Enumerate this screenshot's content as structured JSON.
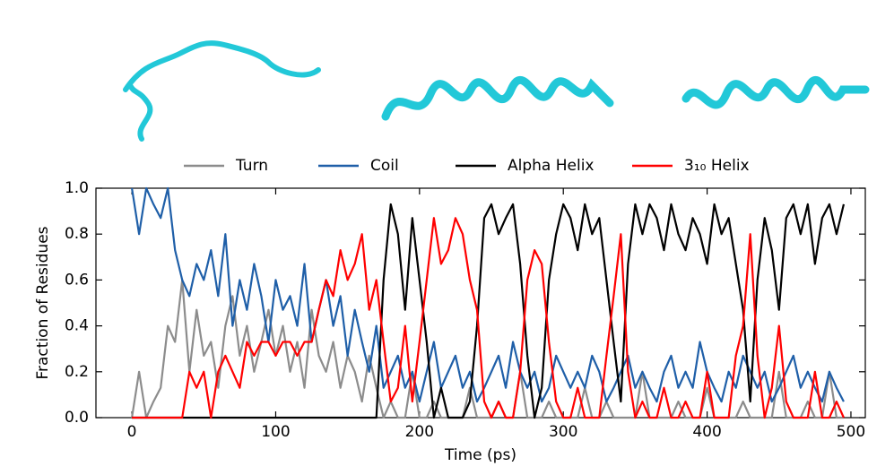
{
  "chart_data": {
    "type": "line",
    "xlabel": "Time (ps)",
    "ylabel": "Fraction of Residues",
    "xlim": [
      -25,
      510
    ],
    "ylim": [
      0,
      1
    ],
    "xticks": [
      0,
      100,
      200,
      300,
      400,
      500
    ],
    "yticks": [
      {
        "value": 0,
        "label": "0.0"
      },
      0.2,
      0.4,
      0.6,
      0.8,
      {
        "value": 1,
        "label": "1.0"
      }
    ],
    "legend": "top",
    "x": [
      0,
      5,
      10,
      15,
      20,
      25,
      30,
      35,
      40,
      45,
      50,
      55,
      60,
      65,
      70,
      75,
      80,
      85,
      90,
      95,
      100,
      105,
      110,
      115,
      120,
      125,
      130,
      135,
      140,
      145,
      150,
      155,
      160,
      165,
      170,
      175,
      180,
      185,
      190,
      195,
      200,
      205,
      210,
      215,
      220,
      225,
      230,
      235,
      240,
      245,
      250,
      255,
      260,
      265,
      270,
      275,
      280,
      285,
      290,
      295,
      300,
      305,
      310,
      315,
      320,
      325,
      330,
      335,
      340,
      345,
      350,
      355,
      360,
      365,
      370,
      375,
      380,
      385,
      390,
      395,
      400,
      405,
      410,
      415,
      420,
      425,
      430,
      435,
      440,
      445,
      450,
      455,
      460,
      465,
      470,
      475,
      480,
      485,
      490,
      495
    ],
    "series": [
      {
        "name": "Turn",
        "color": "#8c8c8c",
        "values": [
          0,
          0.2,
          0,
          0.07,
          0.13,
          0.4,
          0.33,
          0.6,
          0.2,
          0.47,
          0.27,
          0.33,
          0.13,
          0.4,
          0.53,
          0.27,
          0.4,
          0.2,
          0.33,
          0.47,
          0.27,
          0.4,
          0.2,
          0.33,
          0.13,
          0.47,
          0.27,
          0.2,
          0.33,
          0.13,
          0.27,
          0.2,
          0.07,
          0.27,
          0.13,
          0,
          0.07,
          0,
          0,
          0.2,
          0,
          0,
          0.07,
          0,
          0,
          0,
          0,
          0.13,
          0,
          0,
          0,
          0.07,
          0,
          0,
          0.2,
          0,
          0,
          0,
          0.07,
          0,
          0,
          0,
          0,
          0.13,
          0,
          0,
          0.07,
          0,
          0,
          0,
          0,
          0.2,
          0,
          0,
          0,
          0,
          0.07,
          0,
          0,
          0,
          0.13,
          0,
          0,
          0,
          0,
          0.07,
          0,
          0,
          0,
          0,
          0.2,
          0,
          0,
          0,
          0.07,
          0,
          0,
          0.2,
          0,
          0
        ]
      },
      {
        "name": "Coil",
        "color": "#1f5fa8",
        "values": [
          1,
          0.8,
          1,
          0.93,
          0.87,
          1,
          0.73,
          0.6,
          0.53,
          0.67,
          0.6,
          0.73,
          0.53,
          0.8,
          0.4,
          0.6,
          0.47,
          0.67,
          0.53,
          0.33,
          0.6,
          0.47,
          0.53,
          0.4,
          0.67,
          0.33,
          0.47,
          0.6,
          0.4,
          0.53,
          0.27,
          0.47,
          0.33,
          0.2,
          0.4,
          0.13,
          0.2,
          0.27,
          0.13,
          0.2,
          0.07,
          0.2,
          0.33,
          0.13,
          0.2,
          0.27,
          0.13,
          0.2,
          0.07,
          0.13,
          0.2,
          0.27,
          0.13,
          0.33,
          0.2,
          0.13,
          0.2,
          0.07,
          0.13,
          0.27,
          0.2,
          0.13,
          0.2,
          0.13,
          0.27,
          0.2,
          0.07,
          0.13,
          0.2,
          0.27,
          0.13,
          0.2,
          0.13,
          0.07,
          0.2,
          0.27,
          0.13,
          0.2,
          0.13,
          0.33,
          0.2,
          0.13,
          0.07,
          0.2,
          0.13,
          0.27,
          0.2,
          0.13,
          0.2,
          0.07,
          0.13,
          0.2,
          0.27,
          0.13,
          0.2,
          0.13,
          0.07,
          0.2,
          0.13,
          0.07
        ]
      },
      {
        "name": "Alpha Helix",
        "color": "#000000",
        "values": [
          0,
          0,
          0,
          0,
          0,
          0,
          0,
          0,
          0,
          0,
          0,
          0,
          0,
          0,
          0,
          0,
          0,
          0,
          0,
          0,
          0,
          0,
          0,
          0,
          0,
          0,
          0,
          0,
          0,
          0,
          0,
          0,
          0,
          0,
          0,
          0.6,
          0.93,
          0.8,
          0.47,
          0.87,
          0.6,
          0.33,
          0,
          0.13,
          0,
          0,
          0,
          0.07,
          0.4,
          0.87,
          0.93,
          0.8,
          0.87,
          0.93,
          0.67,
          0.27,
          0,
          0.13,
          0.6,
          0.8,
          0.93,
          0.87,
          0.73,
          0.93,
          0.8,
          0.87,
          0.6,
          0.33,
          0.07,
          0.67,
          0.93,
          0.8,
          0.93,
          0.87,
          0.73,
          0.93,
          0.8,
          0.73,
          0.87,
          0.8,
          0.67,
          0.93,
          0.8,
          0.87,
          0.67,
          0.47,
          0.07,
          0.6,
          0.87,
          0.73,
          0.47,
          0.87,
          0.93,
          0.8,
          0.93,
          0.67,
          0.87,
          0.93,
          0.8,
          0.93
        ]
      },
      {
        "name": "3₁₀ Helix",
        "color": "#ff0000",
        "values": [
          0,
          0,
          0,
          0,
          0,
          0,
          0,
          0,
          0.2,
          0.13,
          0.2,
          0,
          0.2,
          0.27,
          0.2,
          0.13,
          0.33,
          0.27,
          0.33,
          0.33,
          0.27,
          0.33,
          0.33,
          0.27,
          0.33,
          0.33,
          0.47,
          0.6,
          0.53,
          0.73,
          0.6,
          0.67,
          0.8,
          0.47,
          0.6,
          0.33,
          0.07,
          0.13,
          0.4,
          0.07,
          0.33,
          0.6,
          0.87,
          0.67,
          0.73,
          0.87,
          0.8,
          0.6,
          0.47,
          0.07,
          0,
          0.07,
          0,
          0,
          0.2,
          0.6,
          0.73,
          0.67,
          0.33,
          0.07,
          0,
          0,
          0.13,
          0,
          0,
          0,
          0.27,
          0.53,
          0.8,
          0.2,
          0,
          0.07,
          0,
          0,
          0.13,
          0,
          0,
          0.07,
          0,
          0,
          0.2,
          0,
          0,
          0,
          0.27,
          0.4,
          0.8,
          0.27,
          0,
          0.13,
          0.4,
          0.07,
          0,
          0,
          0,
          0.2,
          0,
          0,
          0.07,
          0
        ]
      }
    ]
  }
}
